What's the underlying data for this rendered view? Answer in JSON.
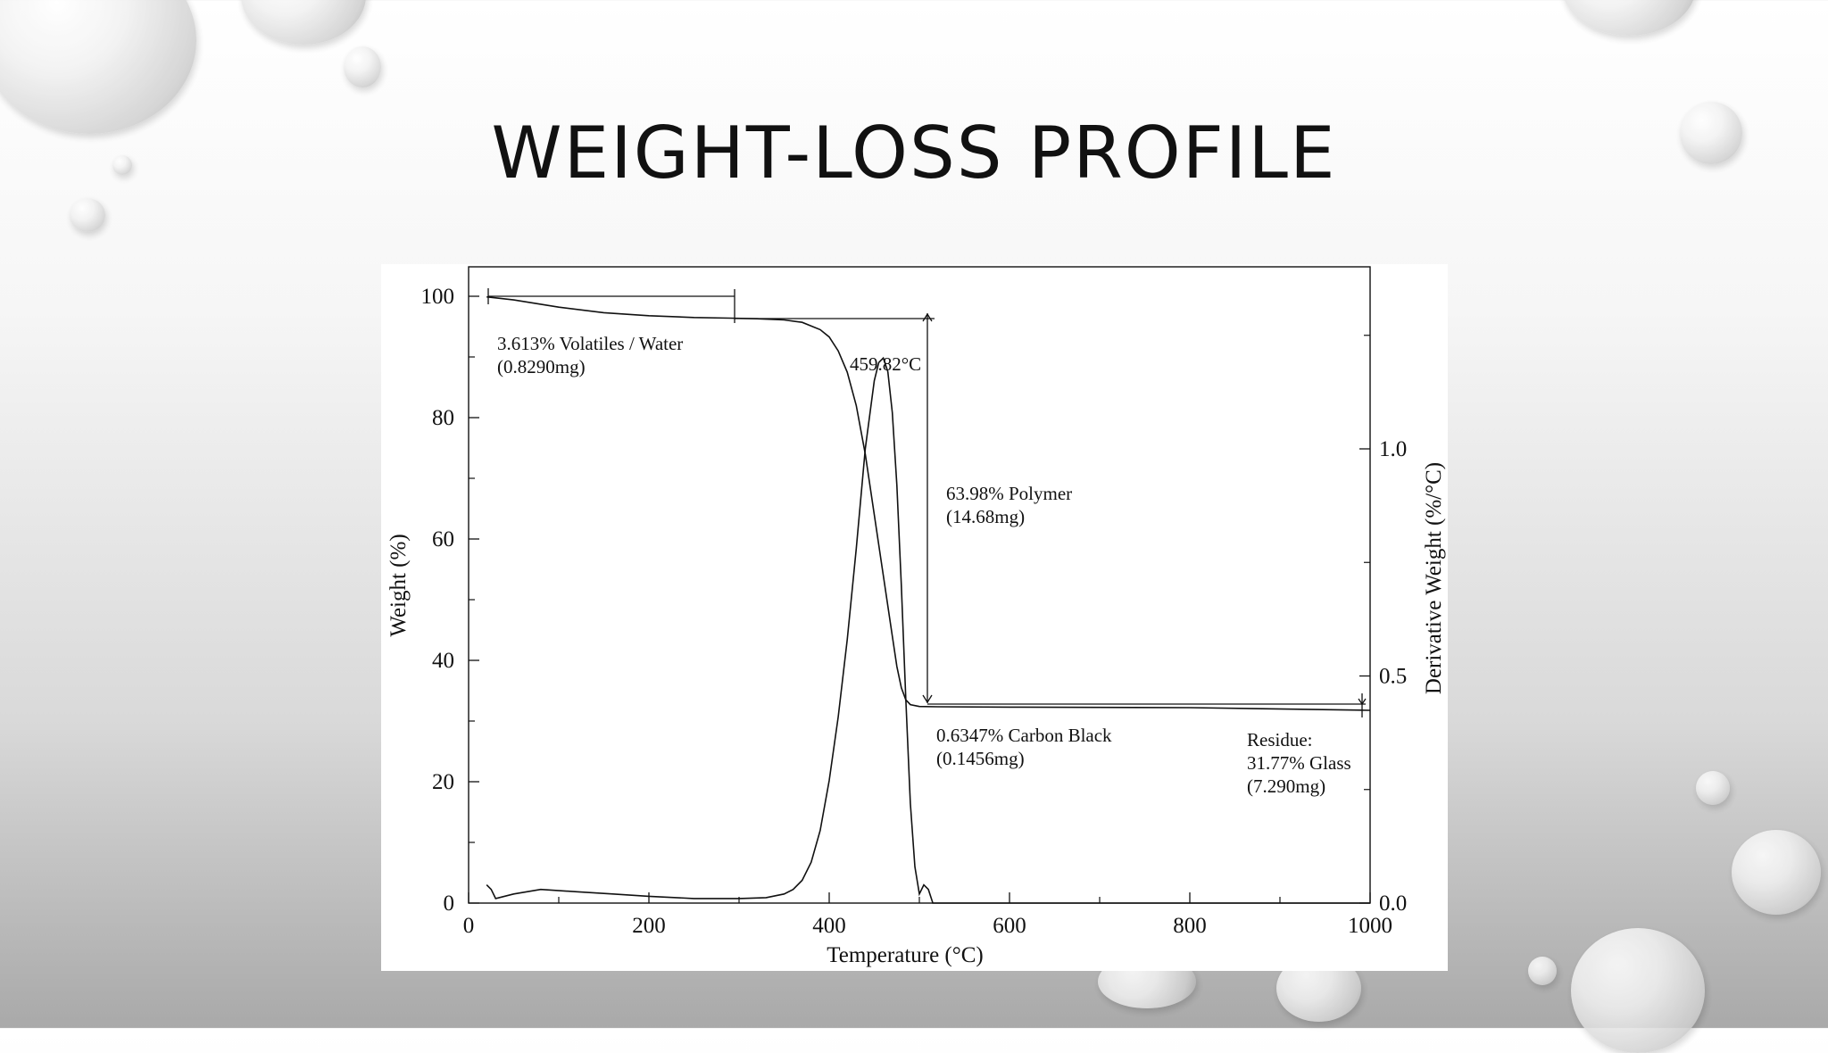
{
  "slide": {
    "title": "WEIGHT-LOSS PROFILE"
  },
  "chart_data": {
    "type": "line",
    "title": "",
    "xlabel": "Temperature (°C)",
    "ylabel_left": "Weight (%)",
    "ylabel_right": "Derivative Weight (%/°C)",
    "xlim": [
      0,
      1000
    ],
    "ylim_left": [
      0,
      100
    ],
    "ylim_right": [
      0.0,
      1.4
    ],
    "x_ticks": [
      "0",
      "200",
      "400",
      "600",
      "800",
      "1000"
    ],
    "y_left_ticks": [
      "0",
      "20",
      "40",
      "60",
      "80",
      "100"
    ],
    "y_right_ticks": [
      "0.0",
      "0.5",
      "1.0"
    ],
    "grid": false,
    "series": [
      {
        "axis": "left",
        "x": [
          20,
          50,
          100,
          150,
          200,
          250,
          290,
          320,
          350,
          370,
          390,
          400,
          410,
          420,
          430,
          440,
          450,
          460,
          470,
          475,
          480,
          485,
          490,
          500,
          520,
          600,
          800,
          1000
        ],
        "values": [
          99.9,
          99.4,
          98.2,
          97.3,
          96.8,
          96.5,
          96.39,
          96.3,
          96.1,
          95.7,
          94.5,
          93.3,
          91.0,
          87.5,
          82.0,
          74.0,
          64.0,
          54.0,
          44.0,
          39.0,
          35.5,
          33.5,
          32.7,
          32.4,
          32.35,
          32.3,
          32.2,
          31.77
        ]
      },
      {
        "axis": "right",
        "x": [
          20,
          25,
          30,
          50,
          80,
          120,
          160,
          200,
          250,
          300,
          330,
          350,
          360,
          370,
          380,
          390,
          400,
          410,
          420,
          430,
          440,
          450,
          455,
          460,
          465,
          470,
          475,
          480,
          485,
          490,
          495,
          500,
          505,
          510,
          515,
          600,
          800,
          1000
        ],
        "values": [
          0.04,
          0.03,
          0.01,
          0.02,
          0.03,
          0.025,
          0.02,
          0.015,
          0.01,
          0.01,
          0.012,
          0.02,
          0.03,
          0.05,
          0.09,
          0.16,
          0.27,
          0.41,
          0.58,
          0.78,
          1.0,
          1.15,
          1.19,
          1.2,
          1.17,
          1.08,
          0.92,
          0.7,
          0.45,
          0.22,
          0.08,
          0.02,
          0.04,
          0.03,
          0.0,
          0.0,
          0.0,
          0.0
        ]
      }
    ],
    "annotations": {
      "volatiles": {
        "line1": "3.613% Volatiles / Water",
        "line2": "(0.8290mg)"
      },
      "peak": "459.82°C",
      "polymer": {
        "line1": "63.98% Polymer",
        "line2": "(14.68mg)"
      },
      "carbon_black": {
        "line1": "0.6347% Carbon Black",
        "line2": "(0.1456mg)"
      },
      "residue": {
        "line1": "Residue:",
        "line2": "31.77% Glass",
        "line3": "(7.290mg)"
      }
    }
  }
}
